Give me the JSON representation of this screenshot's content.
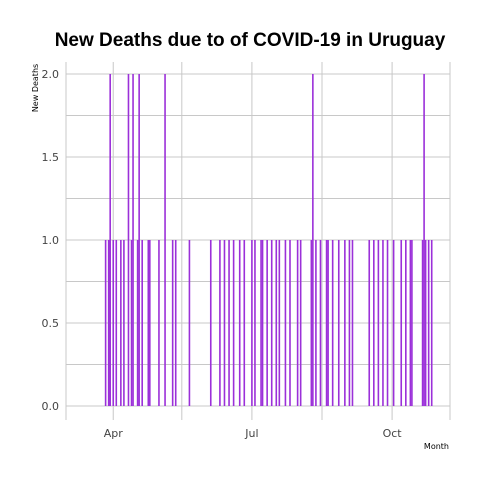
{
  "chart_data": {
    "type": "bar",
    "title": "New Deaths due to of COVID-19 in Uruguay",
    "xlabel": "Month",
    "ylabel": "New Deaths",
    "ylim": [
      0,
      2
    ],
    "y_ticks": [
      "0.0",
      "0.5",
      "1.0",
      "1.5",
      "2.0"
    ],
    "x_ticks": [
      "Apr",
      "Jul",
      "Oct"
    ],
    "grid": true,
    "legend": "none",
    "colors": {
      "bar": "#9b30d9",
      "grid": "#c8c8c8"
    },
    "series": [
      {
        "values": [
          {
            "x": "2020-03-27",
            "y": 1
          },
          {
            "x": "2020-03-29",
            "y": 1
          },
          {
            "x": "2020-03-30",
            "y": 2
          },
          {
            "x": "2020-04-01",
            "y": 1
          },
          {
            "x": "2020-04-03",
            "y": 1
          },
          {
            "x": "2020-04-06",
            "y": 1
          },
          {
            "x": "2020-04-08",
            "y": 1
          },
          {
            "x": "2020-04-11",
            "y": 2
          },
          {
            "x": "2020-04-13",
            "y": 1
          },
          {
            "x": "2020-04-14",
            "y": 2
          },
          {
            "x": "2020-04-17",
            "y": 1
          },
          {
            "x": "2020-04-18",
            "y": 2
          },
          {
            "x": "2020-04-20",
            "y": 1
          },
          {
            "x": "2020-04-24",
            "y": 1
          },
          {
            "x": "2020-04-25",
            "y": 1
          },
          {
            "x": "2020-05-01",
            "y": 1
          },
          {
            "x": "2020-05-05",
            "y": 2
          },
          {
            "x": "2020-05-10",
            "y": 1
          },
          {
            "x": "2020-05-12",
            "y": 1
          },
          {
            "x": "2020-05-21",
            "y": 1
          },
          {
            "x": "2020-06-04",
            "y": 1
          },
          {
            "x": "2020-06-10",
            "y": 1
          },
          {
            "x": "2020-06-13",
            "y": 1
          },
          {
            "x": "2020-06-16",
            "y": 1
          },
          {
            "x": "2020-06-19",
            "y": 1
          },
          {
            "x": "2020-06-23",
            "y": 1
          },
          {
            "x": "2020-06-26",
            "y": 1
          },
          {
            "x": "2020-07-01",
            "y": 1
          },
          {
            "x": "2020-07-03",
            "y": 1
          },
          {
            "x": "2020-07-07",
            "y": 1
          },
          {
            "x": "2020-07-08",
            "y": 1
          },
          {
            "x": "2020-07-11",
            "y": 1
          },
          {
            "x": "2020-07-14",
            "y": 1
          },
          {
            "x": "2020-07-17",
            "y": 1
          },
          {
            "x": "2020-07-19",
            "y": 1
          },
          {
            "x": "2020-07-23",
            "y": 1
          },
          {
            "x": "2020-07-26",
            "y": 1
          },
          {
            "x": "2020-07-31",
            "y": 1
          },
          {
            "x": "2020-08-02",
            "y": 1
          },
          {
            "x": "2020-08-09",
            "y": 1
          },
          {
            "x": "2020-08-10",
            "y": 2
          },
          {
            "x": "2020-08-12",
            "y": 1
          },
          {
            "x": "2020-08-15",
            "y": 1
          },
          {
            "x": "2020-08-19",
            "y": 1
          },
          {
            "x": "2020-08-20",
            "y": 1
          },
          {
            "x": "2020-08-23",
            "y": 1
          },
          {
            "x": "2020-08-27",
            "y": 1
          },
          {
            "x": "2020-08-31",
            "y": 1
          },
          {
            "x": "2020-09-03",
            "y": 1
          },
          {
            "x": "2020-09-05",
            "y": 1
          },
          {
            "x": "2020-09-16",
            "y": 1
          },
          {
            "x": "2020-09-19",
            "y": 1
          },
          {
            "x": "2020-09-22",
            "y": 1
          },
          {
            "x": "2020-09-25",
            "y": 1
          },
          {
            "x": "2020-09-28",
            "y": 1
          },
          {
            "x": "2020-10-02",
            "y": 1
          },
          {
            "x": "2020-10-07",
            "y": 1
          },
          {
            "x": "2020-10-10",
            "y": 1
          },
          {
            "x": "2020-10-13",
            "y": 1
          },
          {
            "x": "2020-10-14",
            "y": 1
          },
          {
            "x": "2020-10-21",
            "y": 1
          },
          {
            "x": "2020-10-22",
            "y": 2
          },
          {
            "x": "2020-10-23",
            "y": 1
          },
          {
            "x": "2020-10-25",
            "y": 1
          },
          {
            "x": "2020-10-27",
            "y": 1
          }
        ]
      }
    ]
  }
}
